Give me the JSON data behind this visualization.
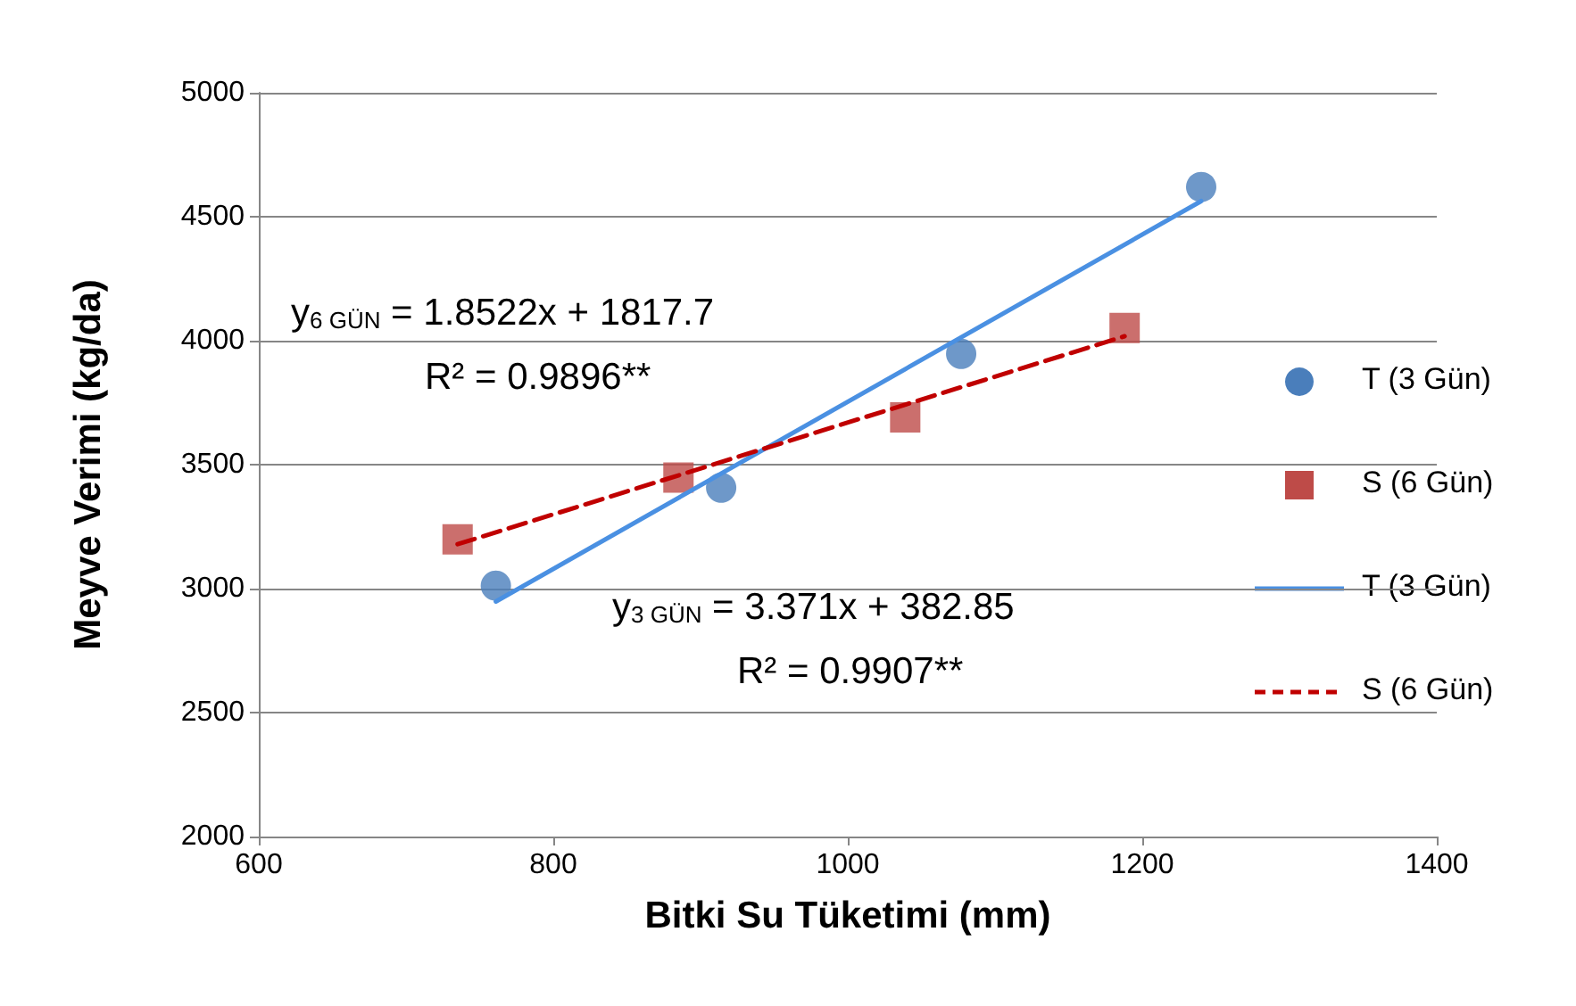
{
  "chart_data": {
    "type": "scatter",
    "xlabel": "Bitki Su Tüketimi (mm)",
    "ylabel": "Meyve Verimi (kg/da)",
    "xlim": [
      600,
      1400
    ],
    "xticks": [
      600,
      800,
      1000,
      1200,
      1400
    ],
    "ylim": [
      2000,
      5000
    ],
    "yticks": [
      2000,
      2500,
      3000,
      3500,
      4000,
      4500,
      5000
    ],
    "grid": "y",
    "legend": "right",
    "series": [
      {
        "name": "T (3 Gün)",
        "marker": "circle",
        "color": "#4a7ebb",
        "x": [
          761,
          914,
          1077,
          1240
        ],
        "values": [
          3012,
          3407,
          3947,
          4620
        ]
      },
      {
        "name": "S (6 Gün)",
        "marker": "square",
        "color": "#be4b48",
        "x": [
          735,
          885,
          1039,
          1188
        ],
        "values": [
          3199,
          3448,
          3691,
          4051
        ]
      },
      {
        "name": "T (3 Gün)",
        "type": "line",
        "line_style": "solid",
        "color": "#4a90e2",
        "x": [
          761,
          1240
        ],
        "values": [
          2948,
          4563
        ]
      },
      {
        "name": "S (6 Gün)",
        "type": "line",
        "line_style": "dashed",
        "color": "#c00000",
        "x": [
          735,
          1188
        ],
        "values": [
          3179,
          4018
        ]
      }
    ],
    "annotations": [
      "y$_{6 GÜN}$ = 1.8522x + 1817.7",
      "R² = 0.9896**",
      "y$_{3 GÜN}$ = 3.371x + 382.85",
      "R² = 0.9907**"
    ]
  }
}
